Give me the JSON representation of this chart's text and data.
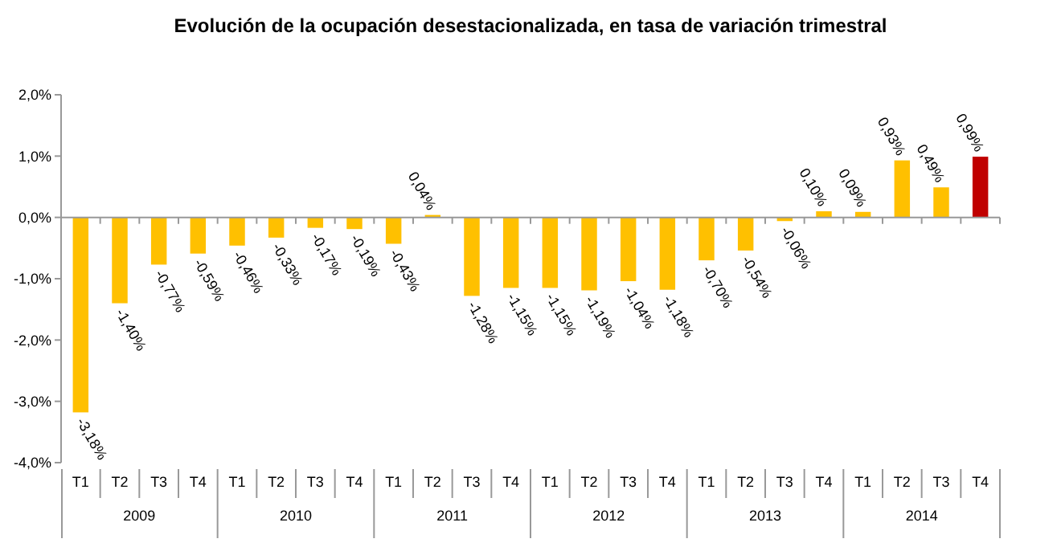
{
  "chart_data": {
    "type": "bar",
    "title": "Evolución de la ocupación desestacionalizada, en tasa de variación trimestral",
    "categories": [
      "T1",
      "T2",
      "T3",
      "T4",
      "T1",
      "T2",
      "T3",
      "T4",
      "T1",
      "T2",
      "T3",
      "T4",
      "T1",
      "T2",
      "T3",
      "T4",
      "T1",
      "T2",
      "T3",
      "T4",
      "T1",
      "T2",
      "T3",
      "T4"
    ],
    "values": [
      -3.18,
      -1.4,
      -0.77,
      -0.59,
      -0.46,
      -0.33,
      -0.17,
      -0.19,
      -0.43,
      0.04,
      -1.28,
      -1.15,
      -1.15,
      -1.19,
      -1.04,
      -1.18,
      -0.7,
      -0.54,
      -0.06,
      0.1,
      0.09,
      0.93,
      0.49,
      0.99
    ],
    "value_labels": [
      "-3,18%",
      "-1,40%",
      "-0,77%",
      "-0,59%",
      "-0,46%",
      "-0,33%",
      "-0,17%",
      "-0,19%",
      "-0,43%",
      "0,04%",
      "-1,28%",
      "-1,15%",
      "-1,15%",
      "-1,19%",
      "-1,04%",
      "-1,18%",
      "-0,70%",
      "-0,54%",
      "-0,06%",
      "0,10%",
      "0,09%",
      "0,93%",
      "0,49%",
      "0,99%"
    ],
    "colors": [
      "#ffc000",
      "#ffc000",
      "#ffc000",
      "#ffc000",
      "#ffc000",
      "#ffc000",
      "#ffc000",
      "#ffc000",
      "#ffc000",
      "#ffc000",
      "#ffc000",
      "#ffc000",
      "#ffc000",
      "#ffc000",
      "#ffc000",
      "#ffc000",
      "#ffc000",
      "#ffc000",
      "#ffc000",
      "#ffc000",
      "#ffc000",
      "#ffc000",
      "#ffc000",
      "#c00000"
    ],
    "ylim": [
      -4,
      2
    ],
    "yticks": [
      {
        "value": -4,
        "label": "-4,0%"
      },
      {
        "value": -3,
        "label": "-3,0%"
      },
      {
        "value": -2,
        "label": "-2,0%"
      },
      {
        "value": -1,
        "label": "-1,0%"
      },
      {
        "value": 0,
        "label": "0,0%"
      },
      {
        "value": 1,
        "label": "1,0%"
      },
      {
        "value": 2,
        "label": "2,0%"
      }
    ],
    "annotations": [
      "2009",
      "2010",
      "2011",
      "2012",
      "2013",
      "2014"
    ],
    "legend": false
  }
}
